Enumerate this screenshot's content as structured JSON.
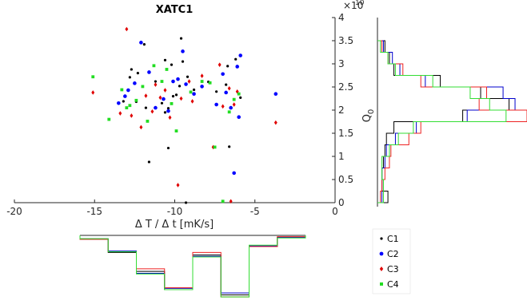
{
  "chart_data": {
    "type": "scatter",
    "title": "XATC1",
    "xlabel": "Δ T / Δ t [mK/s]",
    "ylabel_main": "Q",
    "ylabel_sub": "0",
    "y_exponent_base": "×10",
    "y_exponent_power": "10",
    "xlim": [
      -20,
      0
    ],
    "ylim": [
      0,
      4
    ],
    "x_ticks": [
      "-20",
      "-15",
      "-10",
      "-5",
      "0"
    ],
    "y_ticks": [
      "0",
      "0.5",
      "1",
      "1.5",
      "2",
      "2.5",
      "3",
      "3.5",
      "4"
    ],
    "grid": false,
    "legend_position": "bottom-right, outside",
    "series": [
      {
        "name": "C1",
        "color": "#000000",
        "marker": "dot",
        "x": [
          -10.4,
          -11.6,
          -9.3,
          -12.4,
          -9.7,
          -10.8,
          -9.2,
          -7.9,
          -6.6,
          -10.2,
          -10.6,
          -12.8,
          -11.2,
          -8.8,
          -9.9,
          -10.4,
          -13.2,
          -12.7,
          -11.9,
          -6.2,
          -6.7,
          -5.9,
          -10.6,
          -11.8,
          -9.6,
          -6.8,
          -7.4,
          -9.5,
          -12.3,
          -10.1
        ],
        "y": [
          1.18,
          0.88,
          0.0,
          2.18,
          2.52,
          2.15,
          2.72,
          2.61,
          1.21,
          2.98,
          3.08,
          2.71,
          2.62,
          2.44,
          2.33,
          2.04,
          2.19,
          2.88,
          3.42,
          3.1,
          2.95,
          2.27,
          1.95,
          2.05,
          3.55,
          2.55,
          2.4,
          3.05,
          2.8,
          2.3
        ]
      },
      {
        "name": "C2",
        "color": "#0000ff",
        "marker": "dot",
        "x": [
          -12.1,
          -9.5,
          -10.1,
          -8.8,
          -6.3,
          -7.4,
          -6.8,
          -10.7,
          -13.5,
          -12.5,
          -5.9,
          -6.1,
          -11.2,
          -9.8,
          -7.0,
          -12.9,
          -8.3,
          -10.4,
          -3.7,
          -6.5,
          -6.0,
          -11.6,
          -9.3,
          -13.1
        ],
        "y": [
          3.46,
          3.27,
          2.62,
          2.35,
          0.64,
          2.12,
          2.38,
          2.24,
          2.15,
          2.58,
          3.18,
          2.94,
          2.05,
          2.67,
          2.78,
          2.43,
          2.51,
          1.98,
          2.35,
          2.05,
          1.85,
          2.82,
          2.56,
          2.3
        ]
      },
      {
        "name": "C3",
        "color": "#e00000",
        "marker": "diamond",
        "x": [
          -13.0,
          -9.8,
          -8.3,
          -7.2,
          -6.5,
          -11.4,
          -10.9,
          -13.4,
          -12.1,
          -3.7,
          -7.6,
          -6.3,
          -10.3,
          -9.1,
          -11.8,
          -7.0,
          -6.1,
          -12.7,
          -9.6,
          -10.6,
          -8.9,
          -15.1,
          -11.2,
          -6.6
        ],
        "y": [
          3.75,
          0.38,
          2.74,
          2.98,
          0.03,
          1.97,
          2.27,
          1.93,
          1.63,
          1.73,
          1.2,
          2.12,
          1.84,
          2.62,
          2.31,
          2.08,
          2.4,
          1.88,
          2.25,
          2.43,
          2.19,
          2.38,
          2.55,
          2.47
        ]
      },
      {
        "name": "C4",
        "color": "#22dd22",
        "marker": "square",
        "x": [
          -15.1,
          -12.8,
          -11.3,
          -9.9,
          -7.0,
          -7.5,
          -8.3,
          -14.1,
          -13.3,
          -10.8,
          -12.0,
          -6.3,
          -10.2,
          -6.6,
          -11.7,
          -9.0,
          -7.8,
          -12.4,
          -10.5,
          -6.0,
          -13.0
        ],
        "y": [
          2.72,
          2.1,
          2.96,
          1.55,
          0.03,
          1.2,
          2.62,
          1.8,
          2.44,
          2.62,
          2.51,
          2.23,
          2.14,
          1.96,
          1.76,
          2.39,
          2.59,
          2.21,
          2.88,
          2.35,
          2.05
        ]
      }
    ],
    "right_hist": {
      "orientation": "horizontal",
      "bins": [
        0.0,
        0.25,
        0.5,
        0.75,
        1.0,
        1.25,
        1.5,
        1.75,
        2.0,
        2.25,
        2.5,
        2.75,
        3.0,
        3.25,
        3.5
      ],
      "series": [
        {
          "name": "C1",
          "color": "#000000",
          "values": [
            0.07,
            0.03,
            0.03,
            0.04,
            0.05,
            0.06,
            0.11,
            0.57,
            0.88,
            0.69,
            0.42,
            0.11,
            0.08,
            0.05
          ]
        },
        {
          "name": "C2",
          "color": "#0000cc",
          "values": [
            0.03,
            0.03,
            0.03,
            0.05,
            0.06,
            0.12,
            0.26,
            0.6,
            0.92,
            0.84,
            0.32,
            0.15,
            0.1,
            0.04
          ]
        },
        {
          "name": "C3",
          "color": "#ee2222",
          "values": [
            0.02,
            0.03,
            0.05,
            0.08,
            0.09,
            0.21,
            0.29,
            1.0,
            0.68,
            0.73,
            0.29,
            0.17,
            0.07,
            0.03
          ]
        },
        {
          "name": "C4",
          "color": "#33dd33",
          "values": [
            0.04,
            0.04,
            0.03,
            0.03,
            0.08,
            0.14,
            0.24,
            0.86,
            0.75,
            0.62,
            0.37,
            0.12,
            0.07,
            0.02
          ]
        }
      ]
    },
    "bottom_hist": {
      "orientation": "vertical, inverted",
      "bins": [
        -18,
        -16,
        -14,
        -12,
        -10,
        -8,
        -6,
        -4,
        -2
      ],
      "series": [
        {
          "name": "C1",
          "color": "#000000",
          "values": [
            0.06,
            0.26,
            0.55,
            0.83,
            0.3,
            0.91,
            0.17,
            0.03
          ]
        },
        {
          "name": "C2",
          "color": "#0000cc",
          "values": [
            0.05,
            0.24,
            0.58,
            0.81,
            0.32,
            0.88,
            0.16,
            0.03
          ]
        },
        {
          "name": "C3",
          "color": "#ee2222",
          "values": [
            0.06,
            0.25,
            0.51,
            0.8,
            0.26,
            0.94,
            0.17,
            0.02
          ]
        },
        {
          "name": "C4",
          "color": "#33dd33",
          "values": [
            0.05,
            0.25,
            0.59,
            0.83,
            0.33,
            0.94,
            0.15,
            0.04
          ]
        }
      ]
    }
  }
}
